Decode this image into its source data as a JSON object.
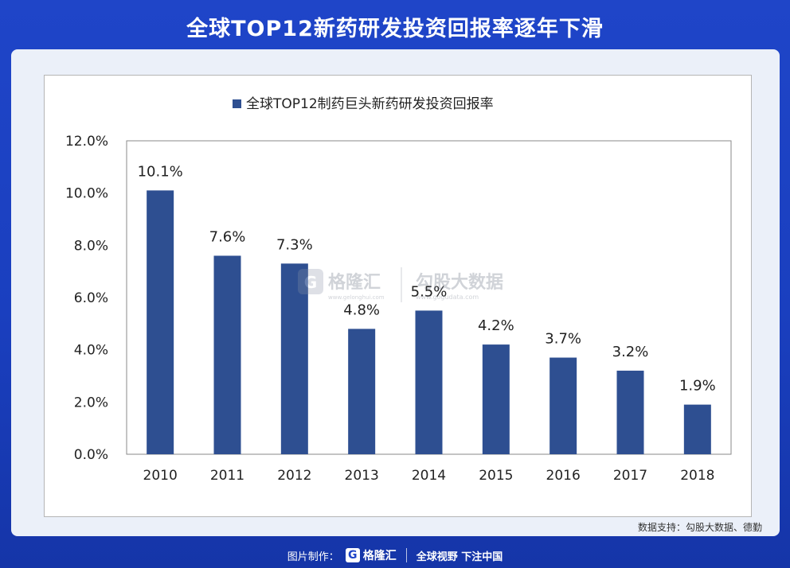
{
  "page": {
    "title": "全球TOP12新药研发投资回报率逐年下滑",
    "source": "数据支持：勾股大数据、德勤"
  },
  "watermark": {
    "brand1": "格隆汇",
    "brand1_url": "www.gelonghui.com",
    "brand2": "勾股大数据",
    "brand2_url": "www.gogudata.com"
  },
  "footer": {
    "made_by": "图片制作：",
    "logo_text": "格隆汇",
    "logo_letter": "G",
    "slogan": "全球视野 下注中国"
  },
  "colors": {
    "bar": "#2e4f91",
    "page_bg": "#1f45c8"
  },
  "chart_data": {
    "type": "bar",
    "title": "",
    "legend": "全球TOP12制药巨头新药研发投资回报率",
    "legend_position": "top",
    "categories": [
      "2010",
      "2011",
      "2012",
      "2013",
      "2014",
      "2015",
      "2016",
      "2017",
      "2018"
    ],
    "series": [
      {
        "name": "全球TOP12制药巨头新药研发投资回报率",
        "values": [
          10.1,
          7.6,
          7.3,
          4.8,
          5.5,
          4.2,
          3.7,
          3.2,
          1.9
        ],
        "labels": [
          "10.1%",
          "7.6%",
          "7.3%",
          "4.8%",
          "5.5%",
          "4.2%",
          "3.7%",
          "3.2%",
          "1.9%"
        ]
      }
    ],
    "ylim": [
      0,
      12
    ],
    "yticks": [
      0,
      2,
      4,
      6,
      8,
      10,
      12
    ],
    "ytick_labels": [
      "0.0%",
      "2.0%",
      "4.0%",
      "6.0%",
      "8.0%",
      "10.0%",
      "12.0%"
    ],
    "xlabel": "",
    "ylabel": "",
    "grid": false
  }
}
